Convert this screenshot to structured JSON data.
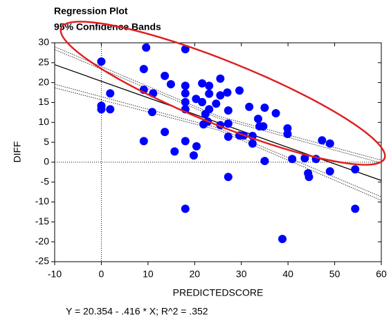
{
  "chart_data": {
    "type": "scatter",
    "title": "Regression Plot",
    "subtitle": "95% Confidence Bands",
    "x_label": "PREDICTEDSCORE",
    "y_label": "DIFF",
    "footer": "Y = 20.354 - .416 * X; R^2 = .352",
    "color": "#0000ff",
    "x": [
      0,
      0,
      0,
      9.6,
      1.9,
      1.9,
      9.1,
      9.1,
      9.1,
      11.1,
      10.9,
      13.6,
      14.9,
      13.6,
      15.7,
      18.0,
      18.0,
      18.0,
      18.0,
      18.0,
      18.0,
      18.0,
      20.3,
      19.8,
      20.4,
      21.6,
      21.6,
      21.9,
      23.1,
      23.1,
      23.1,
      22.3,
      22.8,
      24.6,
      25.5,
      25.5,
      25.5,
      27.0,
      27.2,
      27.2,
      27.2,
      27.2,
      29.6,
      29.6,
      30.5,
      31.7,
      32.4,
      32.4,
      33.6,
      33.9,
      34.7,
      35.0,
      35.0,
      37.4,
      38.8,
      39.9,
      39.9,
      40.9,
      43.6,
      44.3,
      44.5,
      46.0,
      47.3,
      49.0,
      49.0,
      54.4,
      54.4
    ],
    "values": [
      25.3,
      14.2,
      13.3,
      28.8,
      17.3,
      13.3,
      23.4,
      18.2,
      5.3,
      17.3,
      12.6,
      21.7,
      19.6,
      7.6,
      2.7,
      28.4,
      19.2,
      17.3,
      15.1,
      13.3,
      5.3,
      -11.7,
      15.9,
      1.7,
      4.0,
      19.8,
      15.1,
      9.5,
      19.2,
      17.2,
      13.3,
      12.1,
      10.2,
      14.7,
      21.0,
      16.8,
      9.3,
      17.5,
      13.0,
      9.7,
      6.4,
      -3.7,
      18.0,
      6.7,
      6.7,
      13.9,
      6.6,
      4.7,
      10.9,
      9.0,
      9.0,
      13.7,
      0.3,
      12.3,
      -19.3,
      8.5,
      7.1,
      0.8,
      1.0,
      -2.8,
      -3.7,
      0.8,
      5.5,
      4.7,
      -2.3,
      -1.8,
      -11.7
    ],
    "fit_lines": [
      {
        "x": [
          -10,
          60
        ],
        "values": [
          24.5,
          -4.6
        ],
        "color": "#000000",
        "style": "solid"
      },
      {
        "x": [
          -10,
          25,
          60
        ],
        "values": [
          29.0,
          11.6,
          0.5
        ],
        "color": "#333333",
        "style": "dotted"
      },
      {
        "x": [
          -10,
          25,
          60
        ],
        "values": [
          28.3,
          11.1,
          -0.2
        ],
        "color": "#333333",
        "style": "dotted"
      },
      {
        "x": [
          -10,
          25,
          60
        ],
        "values": [
          19.6,
          8.6,
          -8.7
        ],
        "color": "#333333",
        "style": "dotted"
      },
      {
        "x": [
          -10,
          25,
          60
        ],
        "values": [
          18.7,
          8.1,
          -9.6
        ],
        "color": "#333333",
        "style": "dotted"
      }
    ],
    "xlim": [
      -10,
      60
    ],
    "xticks": [
      -10,
      0,
      10,
      20,
      30,
      40,
      50,
      60
    ],
    "ylim": [
      -25,
      30
    ],
    "yticks": [
      -25,
      -20,
      -15,
      -10,
      -5,
      0,
      5,
      10,
      15,
      20,
      25,
      30
    ],
    "zero_lines": true
  }
}
